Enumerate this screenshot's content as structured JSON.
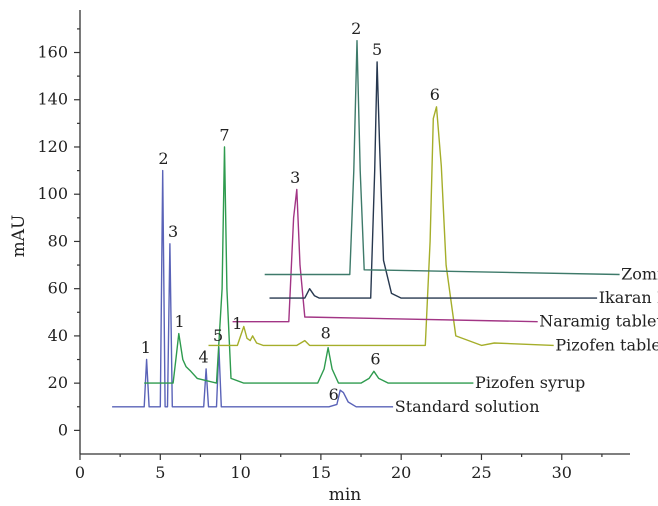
{
  "chart_data": {
    "type": "line",
    "title": "",
    "xlabel": "min",
    "ylabel": "mAU",
    "xlim": [
      0,
      34
    ],
    "ylim": [
      -10,
      178
    ],
    "x_ticks": [
      0,
      5,
      10,
      15,
      20,
      25,
      30
    ],
    "y_ticks": [
      0,
      20,
      40,
      60,
      80,
      100,
      120,
      140,
      160
    ],
    "grid": false,
    "legend": "none",
    "series": [
      {
        "name": "Standard solution",
        "color": "#5a63b8",
        "x": [
          2.0,
          4.0,
          4.15,
          4.3,
          5.0,
          5.15,
          5.3,
          5.45,
          5.6,
          5.75,
          5.9,
          7.7,
          7.85,
          8.0,
          8.5,
          8.65,
          8.8,
          15.5,
          16.0,
          16.2,
          16.4,
          16.7,
          17.2,
          19.5
        ],
        "y": [
          10,
          10,
          30,
          10,
          10,
          110,
          10,
          10,
          79,
          10,
          10,
          10,
          26,
          10,
          10,
          35,
          10,
          10,
          11,
          17,
          16,
          12,
          10,
          10
        ],
        "label_x": 19.6,
        "label_y": 10
      },
      {
        "name": "Pizofen syrup",
        "color": "#2e9b4e",
        "x": [
          4.0,
          5.8,
          6.0,
          6.15,
          6.4,
          6.6,
          6.9,
          7.3,
          8.5,
          8.85,
          9.0,
          9.15,
          9.4,
          10.2,
          14.8,
          15.2,
          15.45,
          15.7,
          16.1,
          17.5,
          18.0,
          18.3,
          18.6,
          19.2,
          22.0,
          24.5
        ],
        "y": [
          20,
          20,
          32,
          41,
          30,
          27,
          25,
          22,
          20,
          60,
          120,
          60,
          22,
          20,
          20,
          26,
          35,
          26,
          20,
          20,
          22,
          25,
          22,
          20,
          20,
          20
        ],
        "label_x": 24.6,
        "label_y": 20
      },
      {
        "name": "Pizofen tablets",
        "color": "#a5ae2a",
        "x": [
          8.0,
          9.8,
          10.0,
          10.2,
          10.4,
          10.6,
          10.75,
          11.0,
          11.4,
          13.5,
          14.0,
          14.3,
          21.5,
          21.8,
          22.0,
          22.2,
          22.5,
          22.8,
          23.4,
          25.0,
          25.8,
          29.5
        ],
        "y": [
          36,
          36,
          40,
          44,
          39,
          38,
          40,
          37,
          36,
          36,
          38,
          36,
          36,
          80,
          132,
          137,
          112,
          70,
          40,
          36,
          37,
          36
        ],
        "label_x": 29.6,
        "label_y": 36
      },
      {
        "name": "Naramig tablets",
        "color": "#a23585",
        "x": [
          9.5,
          13.0,
          13.3,
          13.5,
          13.7,
          14.0,
          28.5
        ],
        "y": [
          46,
          46,
          90,
          102,
          70,
          48,
          46
        ],
        "label_x": 28.6,
        "label_y": 46
      },
      {
        "name": "Ikaran LP tablets",
        "color": "#27384f",
        "x": [
          11.8,
          14.0,
          14.3,
          14.6,
          14.9,
          18.1,
          18.35,
          18.5,
          18.65,
          18.9,
          19.4,
          20.0,
          32.2
        ],
        "y": [
          56,
          56,
          60,
          57,
          56,
          56,
          110,
          156,
          122,
          72,
          58,
          56,
          56
        ],
        "label_x": 32.3,
        "label_y": 56
      },
      {
        "name": "Zomig tablets",
        "color": "#3e7a6a",
        "x": [
          11.5,
          16.8,
          17.05,
          17.25,
          17.45,
          17.7,
          33.6
        ],
        "y": [
          66,
          66,
          110,
          165,
          110,
          68,
          66
        ],
        "label_x": 33.7,
        "label_y": 66
      }
    ],
    "peak_labels": [
      {
        "text": "1",
        "x": 4.1,
        "y": 32
      },
      {
        "text": "2",
        "x": 5.2,
        "y": 112
      },
      {
        "text": "3",
        "x": 5.8,
        "y": 81
      },
      {
        "text": "4",
        "x": 7.7,
        "y": 28
      },
      {
        "text": "5",
        "x": 8.6,
        "y": 37
      },
      {
        "text": "6",
        "x": 15.8,
        "y": 12
      },
      {
        "text": "1",
        "x": 6.2,
        "y": 43
      },
      {
        "text": "7",
        "x": 9.0,
        "y": 122
      },
      {
        "text": "8",
        "x": 15.3,
        "y": 38
      },
      {
        "text": "6",
        "x": 18.4,
        "y": 27
      },
      {
        "text": "1",
        "x": 9.8,
        "y": 42
      },
      {
        "text": "3",
        "x": 13.4,
        "y": 104
      },
      {
        "text": "5",
        "x": 18.5,
        "y": 158
      },
      {
        "text": "6",
        "x": 22.1,
        "y": 139
      },
      {
        "text": "2",
        "x": 17.2,
        "y": 167
      }
    ]
  }
}
